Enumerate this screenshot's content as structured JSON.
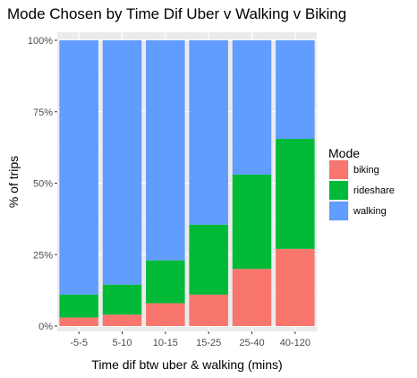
{
  "chart_data": {
    "type": "bar",
    "stacked": true,
    "title": "Mode Chosen by Time Dif Uber v Walking v Biking",
    "xlabel": "Time dif btw uber & walking (mins)",
    "ylabel": "% of trips",
    "categories": [
      "-5-5",
      "5-10",
      "10-15",
      "15-25",
      "25-40",
      "40-120"
    ],
    "series": [
      {
        "name": "biking",
        "color": "#F8766D",
        "values": [
          3,
          4,
          8,
          11,
          20,
          27
        ]
      },
      {
        "name": "rideshare",
        "color": "#00BA38",
        "values": [
          8,
          10.5,
          15,
          24.5,
          33,
          38.5
        ]
      },
      {
        "name": "walking",
        "color": "#619CFF",
        "values": [
          89,
          85.5,
          77,
          64.5,
          47,
          34.5
        ]
      }
    ],
    "ylim": [
      0,
      100
    ],
    "yticks": [
      0,
      25,
      50,
      75,
      100
    ],
    "ytick_labels": [
      "0%",
      "25%",
      "50%",
      "75%",
      "100%"
    ],
    "grid": true,
    "legend": {
      "title": "Mode",
      "position": "right"
    }
  }
}
